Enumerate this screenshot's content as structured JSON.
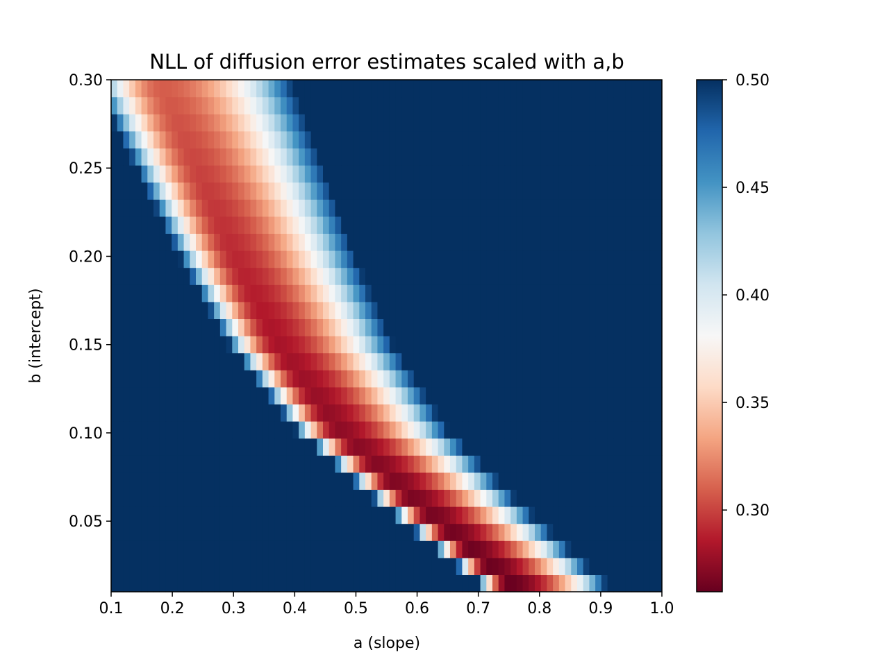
{
  "chart_data": {
    "type": "heatmap",
    "title": "NLL of diffusion error estimates scaled with a,b",
    "xlabel": "a (slope)",
    "ylabel": "b (intercept)",
    "xlim": [
      0.1,
      1.0
    ],
    "ylim": [
      0.01,
      0.3
    ],
    "x_ticks": [
      "0.1",
      "0.2",
      "0.3",
      "0.4",
      "0.5",
      "0.6",
      "0.7",
      "0.8",
      "0.9",
      "1.0"
    ],
    "y_ticks": [
      "0.05",
      "0.10",
      "0.15",
      "0.20",
      "0.25",
      "0.30"
    ],
    "colormap": "RdBu",
    "colorbar": {
      "vmin": 0.262,
      "vmax": 0.5,
      "ticks": [
        "0.30",
        "0.35",
        "0.40",
        "0.45",
        "0.50"
      ],
      "colors": [
        "#67001f",
        "#b2182b",
        "#d6604d",
        "#f4a582",
        "#fddbc7",
        "#f7f7f7",
        "#d1e5f0",
        "#92c5de",
        "#4393c3",
        "#2166ac",
        "#053061"
      ]
    },
    "grid": {
      "a_steps": 91,
      "b_steps": 30,
      "a_range": [
        0.1,
        1.0
      ],
      "b_range": [
        0.01,
        0.3
      ],
      "min_value": 0.262,
      "clip_value": 0.5
    },
    "valley": {
      "points": [
        {
          "b": 0.02,
          "a": 0.72
        },
        {
          "b": 0.06,
          "a": 0.59
        },
        {
          "b": 0.1,
          "a": 0.47
        },
        {
          "b": 0.15,
          "a": 0.37
        },
        {
          "b": 0.2,
          "a": 0.3
        },
        {
          "b": 0.25,
          "a": 0.24
        },
        {
          "b": 0.3,
          "a": 0.18
        }
      ]
    }
  }
}
